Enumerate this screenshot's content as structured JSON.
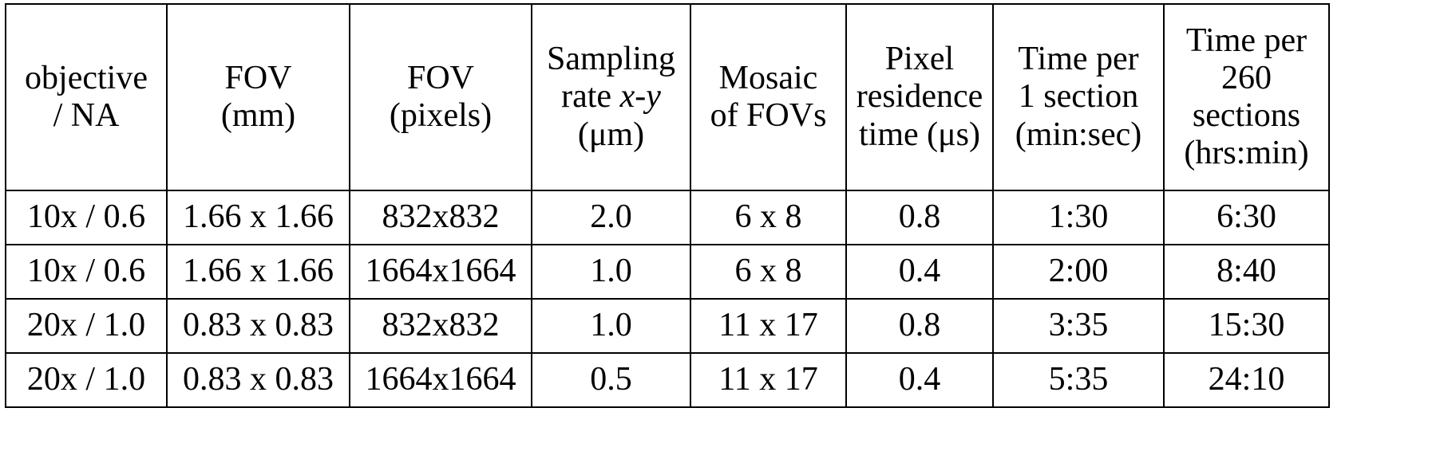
{
  "table": {
    "headers": [
      [
        "objective",
        "/ NA"
      ],
      [
        "FOV",
        "(mm)"
      ],
      [
        "FOV",
        "(pixels)"
      ],
      [
        "Sampling",
        "rate x-y",
        "(μm)"
      ],
      [
        "Mosaic",
        "of FOVs"
      ],
      [
        "Pixel",
        "residence",
        "time (μs)"
      ],
      [
        "Time per",
        "1 section",
        "(min:sec)"
      ],
      [
        "Time per",
        "260",
        "sections",
        "(hrs:min)"
      ]
    ],
    "rows": [
      [
        "10x / 0.6",
        "1.66 x 1.66",
        "832x832",
        "2.0",
        "6 x 8",
        "0.8",
        "1:30",
        "6:30"
      ],
      [
        "10x / 0.6",
        "1.66 x 1.66",
        "1664x1664",
        "1.0",
        "6 x 8",
        "0.4",
        "2:00",
        "8:40"
      ],
      [
        "20x / 1.0",
        "0.83 x 0.83",
        "832x832",
        "1.0",
        "11 x 17",
        "0.8",
        "3:35",
        "15:30"
      ],
      [
        "20x / 1.0",
        "0.83 x 0.83",
        "1664x1664",
        "0.5",
        "11 x 17",
        "0.4",
        "5:35",
        "24:10"
      ]
    ]
  }
}
